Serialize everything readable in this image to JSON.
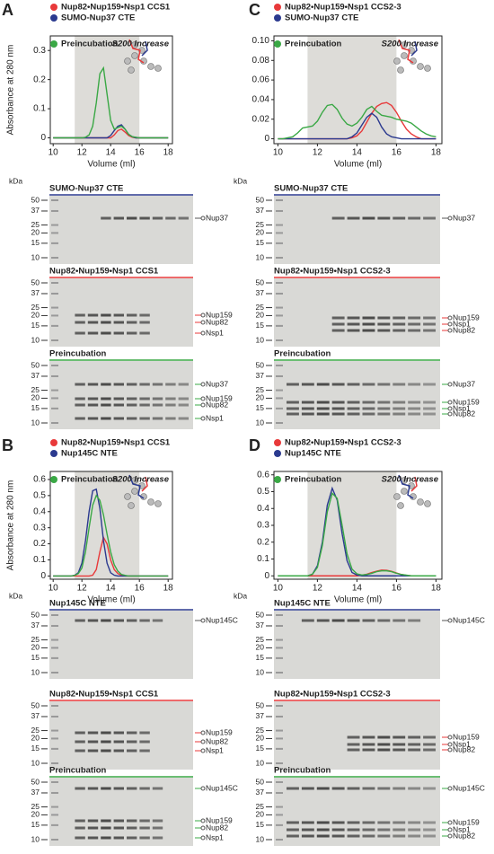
{
  "panel_labels": [
    "A",
    "B",
    "C",
    "D"
  ],
  "chart_data": [
    {
      "type": "line",
      "y_label": "Absorbance at 280 nm",
      "x_label": "Volume (ml)",
      "annotation": "S200 Increase",
      "shade": [
        11.5,
        16
      ],
      "xlim": [
        9.8,
        18.3
      ],
      "xticks": [
        10,
        12,
        14,
        16,
        18
      ],
      "ylim": [
        -0.02,
        0.35
      ],
      "yticks": [
        0,
        0.1,
        0.2,
        0.3
      ],
      "x": [
        10,
        10.25,
        10.5,
        10.75,
        11,
        11.25,
        11.5,
        11.75,
        12,
        12.25,
        12.5,
        12.75,
        13,
        13.25,
        13.5,
        13.75,
        14,
        14.25,
        14.5,
        14.75,
        15,
        15.25,
        15.5,
        15.75,
        16,
        16.25,
        16.5,
        16.75,
        17,
        17.25,
        17.5,
        17.75,
        18
      ],
      "series": [
        {
          "name": "Nup82•Nup159•Nsp1 CCS1",
          "color": "#e8393a",
          "values": [
            0,
            0,
            0,
            0,
            0,
            0,
            0,
            0,
            0,
            0,
            0,
            0,
            0,
            0,
            0,
            0,
            0,
            0.01,
            0.025,
            0.03,
            0.02,
            0.008,
            0.002,
            0,
            0,
            0,
            0,
            0,
            0,
            0,
            0,
            0,
            0
          ]
        },
        {
          "name": "SUMO-Nup37 CTE",
          "color": "#2b3a8f",
          "values": [
            0,
            0,
            0,
            0,
            0,
            0,
            0,
            0,
            0,
            0,
            0,
            0,
            0,
            0,
            0,
            0,
            0.008,
            0.025,
            0.04,
            0.045,
            0.03,
            0.012,
            0.004,
            0,
            0,
            0,
            0,
            0,
            0,
            0,
            0,
            0,
            0
          ]
        },
        {
          "name": "Preincubation",
          "color": "#3aa845",
          "values": [
            0,
            0,
            0,
            0,
            0,
            0,
            0,
            0,
            0,
            0.002,
            0.01,
            0.04,
            0.12,
            0.22,
            0.24,
            0.15,
            0.06,
            0.03,
            0.035,
            0.04,
            0.03,
            0.012,
            0.004,
            0.002,
            0,
            0,
            0,
            0,
            0,
            0,
            0,
            0,
            0
          ]
        }
      ]
    },
    {
      "type": "line",
      "y_label": "Absorbance at 280 nm",
      "x_label": "Volume (ml)",
      "annotation": "S200 Increase",
      "shade": [
        11.5,
        16
      ],
      "xlim": [
        9.8,
        18.3
      ],
      "xticks": [
        10,
        12,
        14,
        16,
        18
      ],
      "ylim": [
        -0.02,
        0.65
      ],
      "yticks": [
        0,
        0.1,
        0.2,
        0.3,
        0.4,
        0.5,
        0.6
      ],
      "x": [
        10,
        10.25,
        10.5,
        10.75,
        11,
        11.25,
        11.5,
        11.75,
        12,
        12.25,
        12.5,
        12.75,
        13,
        13.25,
        13.5,
        13.75,
        14,
        14.25,
        14.5,
        14.75,
        15,
        15.25,
        15.5,
        15.75,
        16,
        16.25,
        16.5,
        16.75,
        17,
        17.25,
        17.5,
        17.75,
        18
      ],
      "series": [
        {
          "name": "Nup82•Nup159•Nsp1 CCS1",
          "color": "#e8393a",
          "values": [
            0,
            0,
            0,
            0,
            0,
            0,
            0,
            0,
            0,
            0,
            0,
            0.005,
            0.04,
            0.15,
            0.24,
            0.2,
            0.1,
            0.04,
            0.015,
            0.005,
            0,
            0,
            0,
            0,
            0,
            0,
            0,
            0,
            0,
            0,
            0,
            0,
            0
          ]
        },
        {
          "name": "Nup145C NTE",
          "color": "#2b3a8f",
          "values": [
            0,
            0,
            0,
            0,
            0,
            0,
            0.005,
            0.02,
            0.08,
            0.22,
            0.4,
            0.53,
            0.54,
            0.42,
            0.22,
            0.08,
            0.02,
            0.005,
            0,
            0,
            0,
            0,
            0,
            0,
            0,
            0,
            0,
            0,
            0,
            0,
            0,
            0,
            0
          ]
        },
        {
          "name": "Preincubation",
          "color": "#3aa845",
          "values": [
            0,
            0,
            0,
            0,
            0,
            0,
            0.004,
            0.015,
            0.05,
            0.15,
            0.3,
            0.44,
            0.5,
            0.47,
            0.38,
            0.26,
            0.15,
            0.07,
            0.03,
            0.01,
            0.004,
            0,
            0,
            0,
            0,
            0,
            0,
            0,
            0,
            0,
            0,
            0,
            0
          ]
        }
      ]
    },
    {
      "type": "line",
      "x_label": "Volume (ml)",
      "annotation": "S200 Increase",
      "shade": [
        11.5,
        16
      ],
      "xlim": [
        9.8,
        18.3
      ],
      "xticks": [
        10,
        12,
        14,
        16,
        18
      ],
      "ylim": [
        -0.005,
        0.105
      ],
      "yticks": [
        0,
        0.02,
        0.04,
        0.06,
        0.08,
        {
          "value": 0.1,
          "label": "0.10"
        }
      ],
      "x": [
        10,
        10.25,
        10.5,
        10.75,
        11,
        11.25,
        11.5,
        11.75,
        12,
        12.25,
        12.5,
        12.75,
        13,
        13.25,
        13.5,
        13.75,
        14,
        14.25,
        14.5,
        14.75,
        15,
        15.25,
        15.5,
        15.75,
        16,
        16.25,
        16.5,
        16.75,
        17,
        17.25,
        17.5,
        17.75,
        18
      ],
      "series": [
        {
          "name": "Nup82•Nup159•Nsp1 CCS2-3",
          "color": "#e8393a",
          "values": [
            0,
            0,
            0,
            0,
            0,
            0,
            0,
            0,
            0,
            0,
            0,
            0,
            0,
            0,
            0,
            0.001,
            0.003,
            0.008,
            0.017,
            0.026,
            0.033,
            0.036,
            0.037,
            0.034,
            0.027,
            0.018,
            0.01,
            0.005,
            0.002,
            0,
            0,
            0,
            0
          ]
        },
        {
          "name": "SUMO-Nup37 CTE",
          "color": "#2b3a8f",
          "values": [
            0,
            0,
            0,
            0,
            0,
            0,
            0,
            0,
            0,
            0,
            0,
            0,
            0,
            0,
            0,
            0.002,
            0.006,
            0.014,
            0.022,
            0.026,
            0.022,
            0.012,
            0.005,
            0.002,
            0.001,
            0,
            0,
            0,
            0,
            0,
            0,
            0,
            0
          ]
        },
        {
          "name": "Preincubation",
          "color": "#3aa845",
          "values": [
            0,
            0,
            0.001,
            0.002,
            0.006,
            0.011,
            0.012,
            0.013,
            0.018,
            0.027,
            0.034,
            0.035,
            0.03,
            0.021,
            0.015,
            0.013,
            0.016,
            0.022,
            0.03,
            0.033,
            0.028,
            0.024,
            0.023,
            0.022,
            0.02,
            0.019,
            0.018,
            0.016,
            0.012,
            0.008,
            0.005,
            0.003,
            0.002
          ]
        }
      ]
    },
    {
      "type": "line",
      "x_label": "Volume (ml)",
      "annotation": "S200 Increase",
      "shade": [
        11.5,
        16
      ],
      "xlim": [
        9.8,
        18.3
      ],
      "xticks": [
        10,
        12,
        14,
        16,
        18
      ],
      "ylim": [
        -0.02,
        0.62
      ],
      "yticks": [
        0,
        0.1,
        0.2,
        0.3,
        0.4,
        0.5,
        0.6
      ],
      "x": [
        10,
        10.25,
        10.5,
        10.75,
        11,
        11.25,
        11.5,
        11.75,
        12,
        12.25,
        12.5,
        12.75,
        13,
        13.25,
        13.5,
        13.75,
        14,
        14.25,
        14.5,
        14.75,
        15,
        15.25,
        15.5,
        15.75,
        16,
        16.25,
        16.5,
        16.75,
        17,
        17.25,
        17.5,
        17.75,
        18
      ],
      "series": [
        {
          "name": "Nup82•Nup159•Nsp1 CCS2-3",
          "color": "#e8393a",
          "values": [
            0,
            0,
            0,
            0,
            0,
            0,
            0,
            0,
            0,
            0,
            0,
            0,
            0,
            0,
            0,
            0,
            0,
            0.004,
            0.01,
            0.02,
            0.028,
            0.034,
            0.033,
            0.027,
            0.017,
            0.008,
            0.003,
            0,
            0,
            0,
            0,
            0,
            0
          ]
        },
        {
          "name": "Nup145C NTE",
          "color": "#2b3a8f",
          "values": [
            0,
            0,
            0,
            0,
            0,
            0,
            0,
            0.01,
            0.06,
            0.2,
            0.42,
            0.52,
            0.45,
            0.25,
            0.09,
            0.02,
            0.005,
            0,
            0,
            0,
            0,
            0,
            0,
            0,
            0,
            0,
            0,
            0,
            0,
            0,
            0,
            0,
            0
          ]
        },
        {
          "name": "Preincubation",
          "color": "#3aa845",
          "values": [
            0,
            0,
            0,
            0,
            0,
            0,
            0,
            0.01,
            0.05,
            0.18,
            0.38,
            0.49,
            0.46,
            0.3,
            0.13,
            0.04,
            0.012,
            0.005,
            0.008,
            0.015,
            0.025,
            0.03,
            0.03,
            0.025,
            0.015,
            0.008,
            0.004,
            0,
            0,
            0,
            0,
            0,
            0
          ]
        }
      ]
    }
  ],
  "gel_panels": [
    {
      "unit": "kDa",
      "gels": [
        {
          "title": "SUMO-Nup37 CTE",
          "color": "#2b3a8f",
          "markers": [
            50,
            37,
            25,
            20,
            15,
            10
          ],
          "bands": [
            "Nup37"
          ]
        },
        {
          "title": "Nup82•Nup159•Nsp1 CCS1",
          "color": "#e8393a",
          "markers": [
            50,
            37,
            25,
            20,
            15,
            10
          ],
          "bands": [
            "Nup159",
            "Nup82",
            "Nsp1"
          ]
        },
        {
          "title": "Preincubation",
          "color": "#3aa845",
          "markers": [
            50,
            37,
            25,
            20,
            15,
            10
          ],
          "bands": [
            "Nup37",
            "Nup159",
            "Nup82",
            "Nsp1"
          ]
        }
      ]
    },
    {
      "unit": "kDa",
      "gels": [
        {
          "title": "Nup145C NTE",
          "color": "#2b3a8f",
          "markers": [
            50,
            37,
            25,
            20,
            15,
            10
          ],
          "bands": [
            "Nup145C"
          ]
        },
        {
          "title": "Nup82•Nup159•Nsp1 CCS1",
          "color": "#e8393a",
          "markers": [
            50,
            37,
            25,
            20,
            15,
            10
          ],
          "bands": [
            "Nup159",
            "Nup82",
            "Nsp1"
          ]
        },
        {
          "title": "Preincubation",
          "color": "#3aa845",
          "markers": [
            50,
            37,
            25,
            20,
            15,
            10
          ],
          "bands": [
            "Nup145C",
            "Nup159",
            "Nup82",
            "Nsp1"
          ]
        }
      ]
    },
    {
      "unit": "kDa",
      "gels": [
        {
          "title": "SUMO-Nup37 CTE",
          "color": "#2b3a8f",
          "markers": [
            50,
            37,
            25,
            20,
            15,
            10
          ],
          "bands": [
            "Nup37"
          ]
        },
        {
          "title": "Nup82•Nup159•Nsp1 CCS2-3",
          "color": "#e8393a",
          "markers": [
            50,
            37,
            25,
            20,
            15,
            10
          ],
          "bands": [
            "Nup159",
            "Nsp1",
            "Nup82"
          ]
        },
        {
          "title": "Preincubation",
          "color": "#3aa845",
          "markers": [
            50,
            37,
            25,
            20,
            15,
            10
          ],
          "bands": [
            "Nup37",
            "Nup159",
            "Nsp1",
            "Nup82"
          ]
        }
      ]
    },
    {
      "unit": "kDa",
      "gels": [
        {
          "title": "Nup145C NTE",
          "color": "#2b3a8f",
          "markers": [
            50,
            37,
            25,
            20,
            15,
            10
          ],
          "bands": [
            "Nup145C"
          ]
        },
        {
          "title": "Nup82•Nup159•Nsp1 CCS2-3",
          "color": "#e8393a",
          "markers": [
            50,
            37,
            25,
            20,
            15,
            10
          ],
          "bands": [
            "Nup159",
            "Nsp1",
            "Nup82"
          ]
        },
        {
          "title": "Preincubation",
          "color": "#3aa845",
          "markers": [
            50,
            37,
            25,
            20,
            15,
            10
          ],
          "bands": [
            "Nup145C",
            "Nup159",
            "Nsp1",
            "Nup82"
          ]
        }
      ]
    }
  ]
}
